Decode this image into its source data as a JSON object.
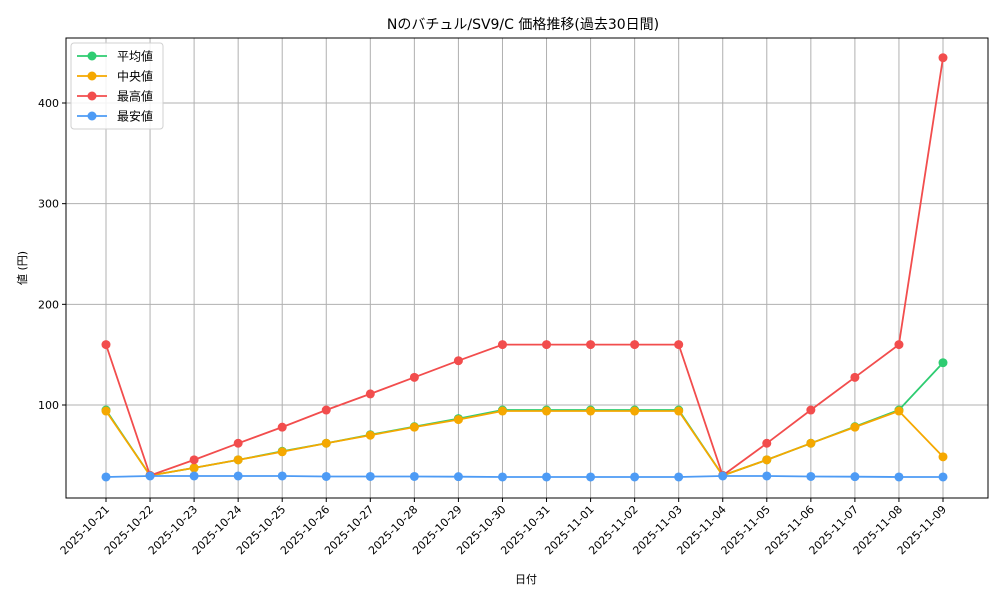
{
  "chart_data": {
    "type": "line",
    "title": "Nのバチュル/SV9/C 価格推移(過去30日間)",
    "xlabel": "日付",
    "ylabel": "値 (円)",
    "ylim": [
      12,
      466
    ],
    "yticks": [
      100,
      200,
      300,
      400
    ],
    "grid": true,
    "legend_position": "upper left",
    "x": [
      "2025-10-21",
      "2025-10-22",
      "2025-10-23",
      "2025-10-24",
      "2025-10-25",
      "2025-10-26",
      "2025-10-27",
      "2025-10-28",
      "2025-10-29",
      "2025-10-30",
      "2025-10-31",
      "2025-11-01",
      "2025-11-02",
      "2025-11-03",
      "2025-11-04",
      "2025-11-05",
      "2025-11-06",
      "2025-11-07",
      "2025-11-08",
      "2025-11-09"
    ],
    "series": [
      {
        "name": "平均値",
        "color": "#2ecc71",
        "values": [
          95,
          30,
          37.5,
          45.5,
          54,
          62,
          70.5,
          78.5,
          86.5,
          95,
          95,
          95,
          95,
          95,
          30,
          45.5,
          62,
          78.5,
          95,
          142
        ]
      },
      {
        "name": "中央値",
        "color": "#f5a800",
        "values": [
          94,
          30,
          37.5,
          45.5,
          53.5,
          62,
          70,
          78,
          85.5,
          94,
          94,
          94,
          94,
          94,
          30,
          45.5,
          62,
          78,
          94,
          48.5
        ]
      },
      {
        "name": "最高値",
        "color": "#f24d4d",
        "values": [
          160,
          30,
          45.5,
          62,
          78,
          95,
          111,
          127.5,
          144,
          160,
          160,
          160,
          160,
          160,
          30,
          62,
          95,
          127.5,
          160,
          445
        ]
      },
      {
        "name": "最安値",
        "color": "#4d9bf5",
        "values": [
          28.5,
          29.5,
          29.5,
          29.5,
          29.5,
          29,
          29,
          29,
          28.8,
          28.5,
          28.5,
          28.5,
          28.5,
          28.5,
          29.5,
          29.5,
          29,
          28.8,
          28.5,
          28.5
        ]
      }
    ]
  }
}
